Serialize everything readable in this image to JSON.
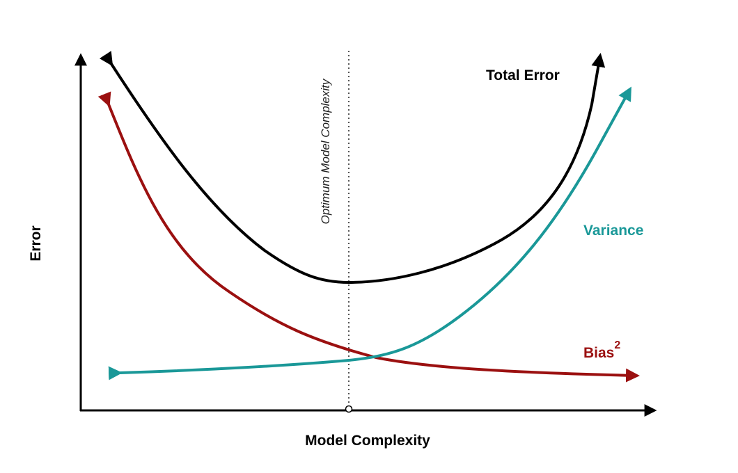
{
  "axes": {
    "x_label": "Model Complexity",
    "y_label": "Error"
  },
  "marker": {
    "label": "Optimum Model Complexity"
  },
  "curves": {
    "total_error": {
      "label": "Total Error",
      "color": "#000000"
    },
    "variance": {
      "label": "Variance",
      "color": "#1a9898"
    },
    "bias": {
      "label": "Bias",
      "superscript": "2",
      "color": "#9b1010"
    }
  }
}
